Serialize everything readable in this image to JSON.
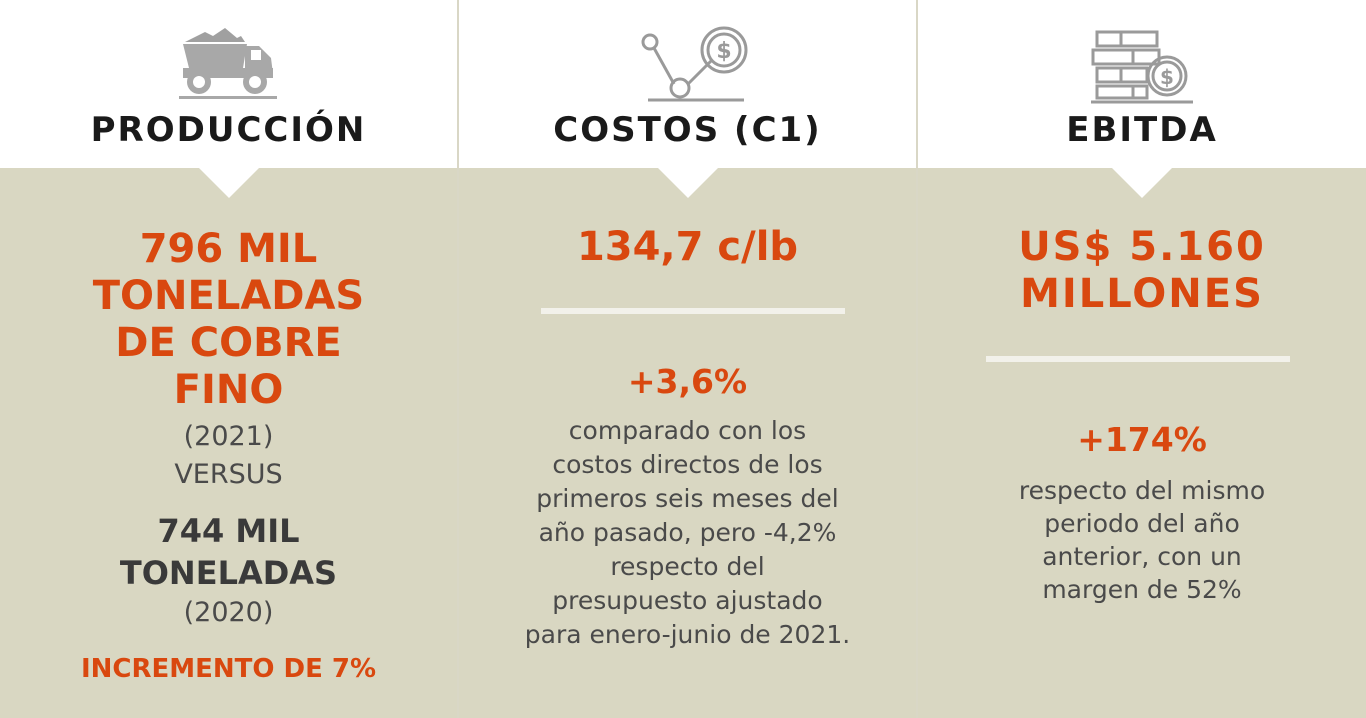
{
  "colors": {
    "accent": "#d9480f",
    "panel": "#d9d7c2",
    "icon": "#9a9a9a",
    "text": "#4a4a4a"
  },
  "produccion": {
    "icon": "dump-truck-icon",
    "title": "PRODUCCIÓN",
    "main_line1": "796 MIL",
    "main_line2": "TONELADAS",
    "main_line3": "DE COBRE",
    "main_line4": "FINO",
    "year1": "(2021)",
    "versus": "VERSUS",
    "prev_line1": "744 MIL",
    "prev_line2": "TONELADAS",
    "year2": "(2020)",
    "increase": "INCREMENTO DE 7%"
  },
  "costos": {
    "icon": "cost-dollar-icon",
    "title": "COSTOS (C1)",
    "value": "134,7 c/lb",
    "change": "+3,6%",
    "desc_lines": [
      "comparado con los",
      "costos directos de los",
      "primeros seis meses del",
      "año pasado, pero -4,2%",
      "respecto del",
      "presupuesto ajustado",
      "para enero-junio de 2021."
    ]
  },
  "ebitda": {
    "icon": "money-stack-dollar-icon",
    "title": "EBITDA",
    "value_line1": "US$ 5.160",
    "value_line2": "MILLONES",
    "change": "+174%",
    "desc_lines": [
      "respecto del mismo",
      "periodo del año",
      "anterior, con un",
      "margen de 52%"
    ]
  }
}
